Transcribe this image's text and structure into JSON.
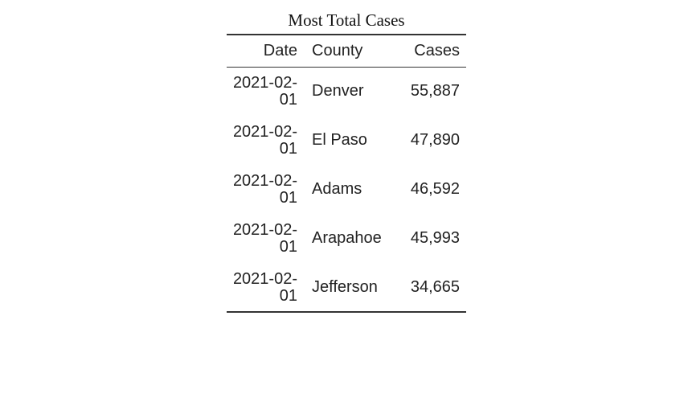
{
  "table": {
    "caption": "Most Total Cases",
    "headers": [
      "Date",
      "County",
      "Cases"
    ],
    "rows": [
      {
        "date_a": "2021-02-",
        "date_b": "01",
        "county": "Denver",
        "cases": "55,887"
      },
      {
        "date_a": "2021-02-",
        "date_b": "01",
        "county": "El Paso",
        "cases": "47,890"
      },
      {
        "date_a": "2021-02-",
        "date_b": "01",
        "county": "Adams",
        "cases": "46,592"
      },
      {
        "date_a": "2021-02-",
        "date_b": "01",
        "county": "Arapahoe",
        "cases": "45,993"
      },
      {
        "date_a": "2021-02-",
        "date_b": "01",
        "county": "Jefferson",
        "cases": "34,665"
      }
    ]
  }
}
